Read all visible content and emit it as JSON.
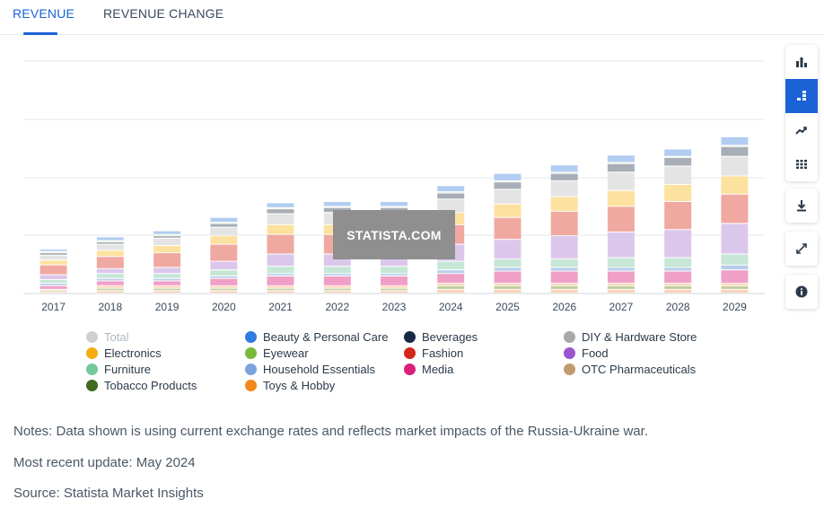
{
  "tabs": {
    "revenue_label": "REVENUE",
    "revenue_change_label": "REVENUE CHANGE"
  },
  "colors": {
    "accent": "#1a62d6",
    "gridline": "#e3e7ea"
  },
  "chart_data": {
    "type": "bar",
    "stacked": true,
    "categories": [
      "2017",
      "2018",
      "2019",
      "2020",
      "2021",
      "2022",
      "2023",
      "2024",
      "2025",
      "2026",
      "2027",
      "2028",
      "2029"
    ],
    "y_axis_labels_shown": false,
    "grid": true,
    "legend_position": "bottom",
    "series": [
      {
        "name": "OTC Pharmaceuticals",
        "color": "#fad3b8",
        "values": [
          0.5,
          1,
          1,
          1,
          1,
          1,
          1,
          1.5,
          1.5,
          1.5,
          1.5,
          1.5,
          1.5
        ]
      },
      {
        "name": "Tobacco Products",
        "color": "#c4cc9c",
        "values": [
          0.5,
          1,
          1,
          1,
          1,
          1,
          1,
          1.5,
          1.5,
          1.5,
          1.5,
          1.5,
          1.5
        ]
      },
      {
        "name": "Toys & Hobby",
        "color": "#ffd1ae",
        "values": [
          0.5,
          1,
          1,
          1,
          1,
          1,
          1,
          1,
          1,
          1,
          1,
          1,
          1
        ]
      },
      {
        "name": "Media",
        "color": "#f0a0c6",
        "values": [
          1.5,
          2,
          2,
          3,
          4,
          4,
          4,
          4,
          5,
          5,
          5,
          5,
          5.5
        ]
      },
      {
        "name": "Household Essentials",
        "color": "#b9cdea",
        "values": [
          1,
          1,
          1,
          1,
          1,
          1,
          1,
          1.5,
          1.5,
          1.5,
          1.5,
          1.5,
          2
        ]
      },
      {
        "name": "Furniture",
        "color": "#c6e7d6",
        "values": [
          1.5,
          2,
          2,
          2.5,
          3,
          3,
          3,
          3.5,
          3.5,
          3.5,
          4,
          4,
          4.5
        ]
      },
      {
        "name": "Food",
        "color": "#dcc7ec",
        "values": [
          2,
          2,
          2.5,
          3.5,
          5,
          5,
          5,
          7,
          8,
          9.5,
          10.5,
          11.5,
          12.5
        ]
      },
      {
        "name": "Fashion",
        "color": "#f0a9a1",
        "values": [
          4,
          5,
          6,
          7,
          8,
          8,
          8,
          8,
          9,
          10,
          10.5,
          11.5,
          12
        ]
      },
      {
        "name": "Electronics",
        "color": "#fde19e",
        "values": [
          2,
          2.5,
          3,
          3.5,
          4,
          4,
          4,
          5,
          5.5,
          6,
          6.5,
          7,
          7.5
        ]
      },
      {
        "name": "DIY & Hardware Store",
        "color": "#e4e4e4",
        "values": [
          2,
          2.5,
          3,
          3.5,
          4.5,
          5,
          5,
          5.5,
          6,
          6.5,
          7.5,
          7.5,
          8
        ]
      },
      {
        "name": "Beverages",
        "color": "#a8aeb7",
        "values": [
          1,
          1,
          1,
          1.5,
          2,
          2,
          2,
          2.5,
          3,
          3,
          3.5,
          3.5,
          4
        ]
      },
      {
        "name": "Eyewear",
        "color": "#e8efdb",
        "values": [
          0.5,
          0.5,
          0.5,
          0.5,
          0.5,
          0.5,
          0.5,
          0.5,
          0.5,
          0.5,
          0.5,
          0.5,
          0.5
        ]
      },
      {
        "name": "Beauty & Personal Care",
        "color": "#b1cdf1",
        "values": [
          1,
          1.5,
          1.5,
          2,
          2,
          2,
          2,
          2.5,
          3,
          3,
          3,
          3,
          3.5
        ]
      }
    ]
  },
  "legend": [
    {
      "label": "Total",
      "color": "#cfcfcf",
      "dim": true
    },
    {
      "label": "Beauty & Personal Care",
      "color": "#2f7be0"
    },
    {
      "label": "Beverages",
      "color": "#172a45"
    },
    {
      "label": "DIY & Hardware Store",
      "color": "#a8a8a8"
    },
    {
      "label": "Electronics",
      "color": "#f5ad12"
    },
    {
      "label": "Eyewear",
      "color": "#79b93a"
    },
    {
      "label": "Fashion",
      "color": "#d4261c"
    },
    {
      "label": "Food",
      "color": "#9b55d1"
    },
    {
      "label": "Furniture",
      "color": "#72c99a"
    },
    {
      "label": "Household Essentials",
      "color": "#7aa3de"
    },
    {
      "label": "Media",
      "color": "#d9207a"
    },
    {
      "label": "OTC Pharmaceuticals",
      "color": "#c29a6f"
    },
    {
      "label": "Tobacco Products",
      "color": "#3f6b1c"
    },
    {
      "label": "Toys & Hobby",
      "color": "#f3881c"
    }
  ],
  "notes": {
    "line1": "Notes: Data shown is using current exchange rates and reflects market impacts of the Russia-Ukraine war.",
    "line2": "Most recent update: May 2024",
    "line3": "Source: Statista Market Insights"
  },
  "watermark": "STATISTA.COM",
  "toolbar": {
    "buttons": [
      {
        "name": "bar-chart-icon",
        "active": false
      },
      {
        "name": "stacked-bar-icon",
        "active": true
      },
      {
        "name": "line-chart-icon",
        "active": false
      },
      {
        "name": "table-icon",
        "active": false
      },
      {
        "name": "download-icon",
        "active": false
      },
      {
        "name": "fullscreen-icon",
        "active": false
      },
      {
        "name": "info-icon",
        "active": false
      }
    ]
  }
}
